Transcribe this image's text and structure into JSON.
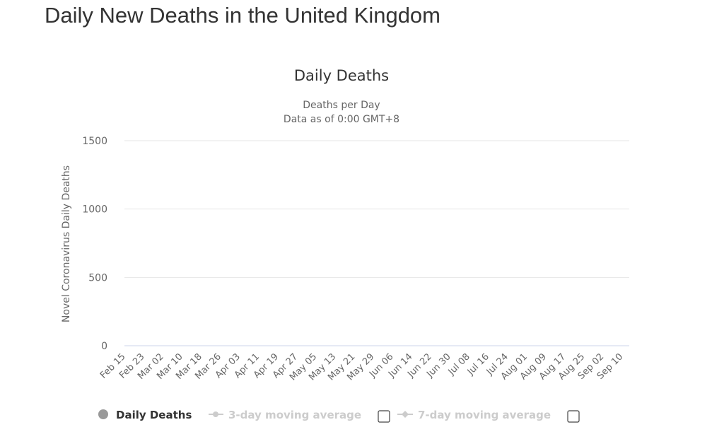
{
  "page": {
    "title": "Daily New Deaths in the United Kingdom"
  },
  "chart_data": {
    "type": "bar",
    "title": "Daily Deaths",
    "subtitle_lines": [
      "Deaths per Day",
      "Data as of 0:00 GMT+8"
    ],
    "ylabel": "Novel Coronavirus Daily Deaths",
    "xlabel": "",
    "ylim": [
      0,
      1500
    ],
    "yticks": [
      0,
      500,
      1000,
      1500
    ],
    "grid": true,
    "x_tick_labels": [
      "Feb 15",
      "Feb 23",
      "Mar 02",
      "Mar 10",
      "Mar 18",
      "Mar 26",
      "Apr 03",
      "Apr 11",
      "Apr 19",
      "Apr 27",
      "May 05",
      "May 13",
      "May 21",
      "May 29",
      "Jun 06",
      "Jun 14",
      "Jun 22",
      "Jun 30",
      "Jul 08",
      "Jul 16",
      "Jul 24",
      "Aug 01",
      "Aug 09",
      "Aug 17",
      "Aug 25",
      "Sep 02",
      "Sep 10"
    ],
    "x_start": "Feb 15",
    "x_end": "Sep 10",
    "bar_color": "#a0a0a0",
    "series": [
      {
        "name": "Daily Deaths",
        "values": [
          0,
          0,
          0,
          0,
          0,
          0,
          0,
          0,
          0,
          0,
          0,
          0,
          0,
          0,
          0,
          0,
          0,
          0,
          0,
          0,
          0,
          0,
          0,
          0,
          0,
          0,
          0,
          0,
          0,
          0,
          0,
          0,
          0,
          0,
          0,
          0,
          0,
          0,
          0,
          0,
          0,
          0,
          0,
          0,
          0,
          0,
          0,
          0,
          0,
          0,
          0,
          0,
          0,
          0,
          0,
          0,
          0,
          0,
          0,
          0,
          0,
          0,
          0,
          0,
          0,
          0,
          0,
          0,
          0,
          0,
          0,
          0,
          0,
          0,
          0,
          0,
          0,
          0,
          0,
          0,
          0,
          0,
          0,
          0,
          0,
          0,
          0,
          0,
          0,
          0,
          0,
          0,
          0,
          0,
          0,
          0,
          0,
          0,
          0,
          0,
          0,
          0,
          0,
          0,
          0,
          0,
          0,
          0,
          0,
          0,
          0,
          0,
          0,
          0,
          0,
          0,
          0,
          0,
          0,
          0,
          0,
          0,
          0,
          0,
          0,
          0,
          0,
          0,
          0,
          0,
          0,
          0,
          0,
          0,
          0,
          0,
          0,
          0,
          0,
          0,
          0,
          0,
          0,
          0,
          0,
          0,
          0,
          0,
          0,
          0,
          0,
          0,
          0,
          0,
          0,
          0,
          0,
          0,
          0,
          0,
          0,
          0,
          0,
          0,
          0,
          0,
          0,
          0,
          0,
          0,
          0,
          0,
          0,
          0,
          0,
          0,
          0,
          0,
          0,
          0,
          0,
          0,
          0,
          0,
          0,
          0,
          0,
          0,
          0,
          0,
          0,
          0,
          0,
          0,
          0,
          0,
          0,
          0,
          0,
          0,
          0,
          0,
          0,
          0,
          0,
          0,
          0,
          0,
          0,
          0,
          0
        ]
      }
    ],
    "legend": [
      {
        "label": "Daily Deaths",
        "active": true
      },
      {
        "label": "3-day moving average",
        "active": false
      },
      {
        "label": "7-day moving average",
        "active": false
      }
    ]
  }
}
